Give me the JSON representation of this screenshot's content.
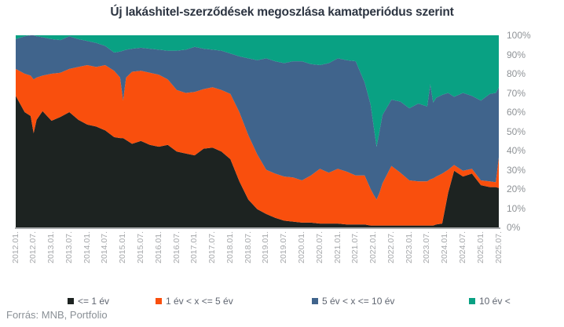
{
  "title": "Új lakáshitel-szerződések megoszlása kamatperiódus szerint",
  "source": "Forrás: MNB, Portfolio",
  "chart_data": {
    "type": "area",
    "stacked": true,
    "percent_stacked": true,
    "title": "Új lakáshitel-szerződések megoszlása kamatperiódus szerint",
    "xlabel": "",
    "ylabel": "",
    "ylim": [
      0,
      100
    ],
    "grid": false,
    "legend_position": "bottom",
    "y_ticks": [
      "0%",
      "10%",
      "20%",
      "30%",
      "40%",
      "50%",
      "60%",
      "70%",
      "80%",
      "90%",
      "100%"
    ],
    "x_ticks": [
      "2012.01.",
      "2012.07.",
      "2013.01.",
      "2013.07.",
      "2014.01.",
      "2014.07.",
      "2015.01.",
      "2015.07.",
      "2016.01.",
      "2016.07.",
      "2017.01.",
      "2017.07.",
      "2018.01.",
      "2018.07.",
      "2019.01.",
      "2019.07.",
      "2020.01.",
      "2020.07.",
      "2021.01.",
      "2021.07.",
      "2022.01.",
      "2022.07.",
      "2023.01.",
      "2023.07.",
      "2024.01.",
      "2024.07.",
      "2025.01.",
      "2025.07."
    ],
    "x": [
      "2012.01",
      "2012.04",
      "2012.06",
      "2012.07",
      "2012.08",
      "2012.10",
      "2013.01",
      "2013.04",
      "2013.07",
      "2013.10",
      "2014.01",
      "2014.04",
      "2014.07",
      "2014.10",
      "2014.12",
      "2015.01",
      "2015.02",
      "2015.04",
      "2015.07",
      "2015.10",
      "2016.01",
      "2016.04",
      "2016.07",
      "2016.10",
      "2017.01",
      "2017.04",
      "2017.07",
      "2017.10",
      "2018.01",
      "2018.04",
      "2018.07",
      "2018.10",
      "2019.01",
      "2019.04",
      "2019.07",
      "2019.10",
      "2020.01",
      "2020.04",
      "2020.07",
      "2020.10",
      "2021.01",
      "2021.04",
      "2021.07",
      "2021.10",
      "2021.12",
      "2022.01",
      "2022.02",
      "2022.03",
      "2022.04",
      "2022.07",
      "2022.10",
      "2023.01",
      "2023.04",
      "2023.07",
      "2023.08",
      "2023.09",
      "2023.10",
      "2023.12",
      "2024.02",
      "2024.04",
      "2024.07",
      "2024.10",
      "2025.01",
      "2025.04",
      "2025.06",
      "2025.07"
    ],
    "series": [
      {
        "name": "<= 1 év",
        "color": "#1d2321",
        "values": [
          68.5,
          60,
          58,
          49,
          56,
          60.5,
          55.5,
          57.5,
          60,
          56,
          53.5,
          52.5,
          50.5,
          47,
          46.5,
          46.5,
          45.5,
          43.5,
          45,
          43,
          42,
          43,
          39.5,
          38.5,
          37.5,
          41,
          41.5,
          39.5,
          35.5,
          24,
          14.5,
          9.5,
          7,
          5,
          3.5,
          3,
          2.5,
          2.5,
          2,
          2,
          2,
          1.5,
          1.5,
          1.5,
          1,
          1,
          1,
          1,
          1,
          1,
          1,
          1,
          1,
          1,
          1,
          1,
          1.5,
          2,
          18,
          29.5,
          26.5,
          28,
          22,
          21,
          21,
          20.5
        ]
      },
      {
        "name": "1 év < x <= 5 év",
        "color": "#f94f0d",
        "values": [
          14,
          20,
          21,
          28,
          22,
          18.5,
          24.5,
          23,
          22.5,
          27.5,
          31,
          31,
          34,
          34.5,
          31.5,
          19.5,
          32.5,
          37.5,
          36.5,
          37.5,
          37.5,
          34,
          32,
          31.5,
          33,
          31,
          31.5,
          32,
          34,
          36,
          33.5,
          28.5,
          23,
          23,
          23,
          23,
          22,
          24.5,
          28.5,
          26.5,
          28.5,
          27.5,
          25.5,
          25.5,
          19,
          16,
          13.5,
          17,
          22,
          31,
          27.5,
          23.5,
          23,
          23,
          24,
          24.5,
          25,
          26,
          12,
          3,
          3,
          2.5,
          2.5,
          3,
          2.5,
          16
        ]
      },
      {
        "name": "5 év < x <= 10 év",
        "color": "#40648c",
        "values": [
          15.5,
          19.5,
          21,
          23,
          21.5,
          20,
          18,
          17,
          17,
          14.5,
          12.5,
          12.5,
          10,
          9.5,
          13.5,
          26,
          14.5,
          12,
          12,
          12.5,
          13,
          15,
          20.5,
          22.5,
          23.5,
          21,
          19.5,
          20.5,
          21,
          29,
          40,
          49,
          58,
          58.5,
          59,
          60.5,
          62,
          58,
          54,
          57,
          57.5,
          58,
          59.5,
          48.5,
          44,
          36,
          27.5,
          32,
          35.5,
          34.5,
          37,
          37.5,
          40.5,
          39,
          49.5,
          39.5,
          41,
          41,
          40,
          35.5,
          40.5,
          38,
          41.5,
          45.5,
          46.5,
          36.5
        ]
      },
      {
        "name": "10 év <",
        "color": "#09a183",
        "values": [
          2,
          0.5,
          0,
          0,
          0.5,
          1,
          2,
          2.5,
          0.5,
          2,
          3,
          4,
          5.5,
          9,
          8.5,
          8,
          7.5,
          7,
          6.5,
          7,
          7.5,
          8,
          8,
          7.5,
          6,
          7,
          7.5,
          8,
          9.5,
          11,
          12,
          13,
          12,
          13.5,
          14.5,
          13.5,
          13.5,
          15,
          15.5,
          14.5,
          12,
          13,
          13.5,
          24.5,
          36,
          47,
          58,
          50,
          41.5,
          33.5,
          34.5,
          38,
          35.5,
          37,
          25.5,
          35,
          32.5,
          31,
          30,
          32,
          30,
          31.5,
          34,
          30.5,
          30,
          27
        ]
      }
    ],
    "axis_line_color": "#a8abad",
    "x_label_color": "#a6a8ab",
    "y_label_color": "#8f9397"
  }
}
